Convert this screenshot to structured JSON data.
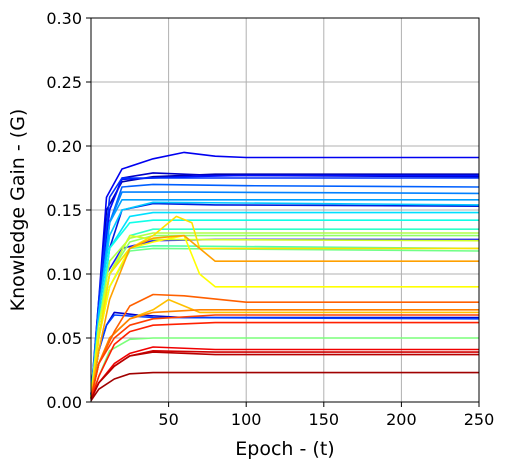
{
  "chart_data": {
    "type": "line",
    "xlabel": "Epoch - (t)",
    "ylabel": "Knowledge Gain - (G)",
    "xlim": [
      0,
      250
    ],
    "ylim": [
      0.0,
      0.3
    ],
    "xticks": [
      "50",
      "100",
      "150",
      "200",
      "250"
    ],
    "xtick_values": [
      50,
      100,
      150,
      200,
      250
    ],
    "yticks": [
      "0.00",
      "0.05",
      "0.10",
      "0.15",
      "0.20",
      "0.25",
      "0.30"
    ],
    "ytick_values": [
      0.0,
      0.05,
      0.1,
      0.15,
      0.2,
      0.25,
      0.3
    ],
    "grid": true,
    "legend": "none",
    "colormap": "jet",
    "series": [
      {
        "color": "#0000a8",
        "values": [
          [
            0,
            0.005
          ],
          [
            5,
            0.07
          ],
          [
            10,
            0.15
          ],
          [
            20,
            0.172
          ],
          [
            40,
            0.176
          ],
          [
            80,
            0.178
          ],
          [
            250,
            0.178
          ]
        ]
      },
      {
        "color": "#0000c8",
        "values": [
          [
            0,
            0.005
          ],
          [
            5,
            0.07
          ],
          [
            12,
            0.15
          ],
          [
            20,
            0.175
          ],
          [
            40,
            0.179
          ],
          [
            80,
            0.177
          ],
          [
            250,
            0.176
          ]
        ]
      },
      {
        "color": "#0000f0",
        "values": [
          [
            0,
            0.005
          ],
          [
            5,
            0.08
          ],
          [
            10,
            0.16
          ],
          [
            20,
            0.182
          ],
          [
            40,
            0.19
          ],
          [
            60,
            0.195
          ],
          [
            80,
            0.192
          ],
          [
            100,
            0.191
          ],
          [
            250,
            0.191
          ]
        ]
      },
      {
        "color": "#0010ff",
        "values": [
          [
            0,
            0.005
          ],
          [
            5,
            0.07
          ],
          [
            12,
            0.15
          ],
          [
            20,
            0.174
          ],
          [
            60,
            0.176
          ],
          [
            100,
            0.177
          ],
          [
            250,
            0.177
          ]
        ]
      },
      {
        "color": "#0030ff",
        "values": [
          [
            0,
            0.005
          ],
          [
            5,
            0.08
          ],
          [
            12,
            0.16
          ],
          [
            20,
            0.175
          ],
          [
            40,
            0.175
          ],
          [
            250,
            0.175
          ]
        ]
      },
      {
        "color": "#0020e0",
        "values": [
          [
            0,
            0.005
          ],
          [
            5,
            0.06
          ],
          [
            12,
            0.12
          ],
          [
            20,
            0.15
          ],
          [
            40,
            0.155
          ],
          [
            80,
            0.154
          ],
          [
            250,
            0.153
          ]
        ]
      },
      {
        "color": "#1a1aff",
        "values": [
          [
            0,
            0.005
          ],
          [
            5,
            0.06
          ],
          [
            10,
            0.1
          ],
          [
            20,
            0.12
          ],
          [
            40,
            0.126
          ],
          [
            80,
            0.127
          ],
          [
            250,
            0.127
          ]
        ]
      },
      {
        "color": "#0000d0",
        "values": [
          [
            0,
            0.003
          ],
          [
            5,
            0.04
          ],
          [
            10,
            0.06
          ],
          [
            15,
            0.07
          ],
          [
            30,
            0.068
          ],
          [
            60,
            0.066
          ],
          [
            250,
            0.066
          ]
        ]
      },
      {
        "color": "#0040ff",
        "values": [
          [
            0,
            0.003
          ],
          [
            5,
            0.04
          ],
          [
            10,
            0.06
          ],
          [
            15,
            0.068
          ],
          [
            40,
            0.066
          ],
          [
            250,
            0.065
          ]
        ]
      },
      {
        "color": "#0060ff",
        "values": [
          [
            0,
            0.005
          ],
          [
            5,
            0.07
          ],
          [
            12,
            0.14
          ],
          [
            20,
            0.168
          ],
          [
            40,
            0.17
          ],
          [
            100,
            0.169
          ],
          [
            250,
            0.168
          ]
        ]
      },
      {
        "color": "#0080ff",
        "values": [
          [
            0,
            0.005
          ],
          [
            5,
            0.07
          ],
          [
            12,
            0.14
          ],
          [
            20,
            0.164
          ],
          [
            60,
            0.164
          ],
          [
            250,
            0.163
          ]
        ]
      },
      {
        "color": "#00a0ff",
        "values": [
          [
            0,
            0.005
          ],
          [
            5,
            0.07
          ],
          [
            12,
            0.14
          ],
          [
            20,
            0.158
          ],
          [
            60,
            0.158
          ],
          [
            250,
            0.158
          ]
        ]
      },
      {
        "color": "#00c8ff",
        "values": [
          [
            0,
            0.005
          ],
          [
            5,
            0.07
          ],
          [
            12,
            0.13
          ],
          [
            20,
            0.15
          ],
          [
            40,
            0.156
          ],
          [
            250,
            0.154
          ]
        ]
      },
      {
        "color": "#00e0ff",
        "values": [
          [
            0,
            0.005
          ],
          [
            5,
            0.06
          ],
          [
            12,
            0.12
          ],
          [
            25,
            0.145
          ],
          [
            40,
            0.148
          ],
          [
            250,
            0.148
          ]
        ]
      },
      {
        "color": "#10ffe8",
        "values": [
          [
            0,
            0.005
          ],
          [
            5,
            0.06
          ],
          [
            12,
            0.12
          ],
          [
            25,
            0.14
          ],
          [
            40,
            0.142
          ],
          [
            250,
            0.142
          ]
        ]
      },
      {
        "color": "#30ffc8",
        "values": [
          [
            0,
            0.004
          ],
          [
            5,
            0.05
          ],
          [
            12,
            0.1
          ],
          [
            25,
            0.13
          ],
          [
            40,
            0.135
          ],
          [
            250,
            0.135
          ]
        ]
      },
      {
        "color": "#50ffa8",
        "values": [
          [
            0,
            0.004
          ],
          [
            5,
            0.05
          ],
          [
            12,
            0.1
          ],
          [
            25,
            0.12
          ],
          [
            40,
            0.122
          ],
          [
            250,
            0.12
          ]
        ]
      },
      {
        "color": "#70ff88",
        "values": [
          [
            0,
            0.004
          ],
          [
            5,
            0.05
          ],
          [
            12,
            0.09
          ],
          [
            25,
            0.118
          ],
          [
            40,
            0.12
          ],
          [
            250,
            0.118
          ]
        ]
      },
      {
        "color": "#7aff7a",
        "values": [
          [
            0,
            0.003
          ],
          [
            5,
            0.02
          ],
          [
            12,
            0.04
          ],
          [
            25,
            0.049
          ],
          [
            40,
            0.05
          ],
          [
            250,
            0.05
          ]
        ]
      },
      {
        "color": "#90ff68",
        "values": [
          [
            0,
            0.004
          ],
          [
            5,
            0.05
          ],
          [
            12,
            0.1
          ],
          [
            25,
            0.125
          ],
          [
            40,
            0.13
          ],
          [
            250,
            0.13
          ]
        ]
      },
      {
        "color": "#b0ff48",
        "values": [
          [
            0,
            0.004
          ],
          [
            5,
            0.06
          ],
          [
            12,
            0.11
          ],
          [
            25,
            0.128
          ],
          [
            40,
            0.132
          ],
          [
            250,
            0.132
          ]
        ]
      },
      {
        "color": "#d0ff28",
        "values": [
          [
            0,
            0.004
          ],
          [
            5,
            0.06
          ],
          [
            12,
            0.1
          ],
          [
            25,
            0.13
          ],
          [
            40,
            0.127
          ],
          [
            250,
            0.126
          ]
        ]
      },
      {
        "color": "#ffff00",
        "values": [
          [
            0,
            0.004
          ],
          [
            5,
            0.05
          ],
          [
            12,
            0.09
          ],
          [
            25,
            0.12
          ],
          [
            40,
            0.125
          ],
          [
            60,
            0.13
          ],
          [
            70,
            0.1
          ],
          [
            80,
            0.09
          ],
          [
            250,
            0.09
          ]
        ]
      },
      {
        "color": "#ffe000",
        "values": [
          [
            0,
            0.004
          ],
          [
            5,
            0.05
          ],
          [
            12,
            0.1
          ],
          [
            25,
            0.12
          ],
          [
            40,
            0.13
          ],
          [
            55,
            0.145
          ],
          [
            65,
            0.14
          ],
          [
            70,
            0.12
          ],
          [
            250,
            0.12
          ]
        ]
      },
      {
        "color": "#ffc000",
        "values": [
          [
            0,
            0.003
          ],
          [
            5,
            0.03
          ],
          [
            12,
            0.05
          ],
          [
            25,
            0.065
          ],
          [
            40,
            0.072
          ],
          [
            50,
            0.08
          ],
          [
            60,
            0.075
          ],
          [
            70,
            0.07
          ],
          [
            250,
            0.07
          ]
        ]
      },
      {
        "color": "#ffa000",
        "values": [
          [
            0,
            0.003
          ],
          [
            5,
            0.04
          ],
          [
            12,
            0.08
          ],
          [
            25,
            0.12
          ],
          [
            40,
            0.128
          ],
          [
            60,
            0.13
          ],
          [
            70,
            0.12
          ],
          [
            80,
            0.11
          ],
          [
            250,
            0.11
          ]
        ]
      },
      {
        "color": "#ff8000",
        "values": [
          [
            0,
            0.003
          ],
          [
            5,
            0.03
          ],
          [
            12,
            0.05
          ],
          [
            25,
            0.065
          ],
          [
            40,
            0.07
          ],
          [
            70,
            0.072
          ],
          [
            250,
            0.072
          ]
        ]
      },
      {
        "color": "#ff6000",
        "values": [
          [
            0,
            0.003
          ],
          [
            5,
            0.03
          ],
          [
            15,
            0.055
          ],
          [
            25,
            0.075
          ],
          [
            40,
            0.084
          ],
          [
            60,
            0.083
          ],
          [
            100,
            0.078
          ],
          [
            250,
            0.078
          ]
        ]
      },
      {
        "color": "#ff4000",
        "values": [
          [
            0,
            0.003
          ],
          [
            5,
            0.03
          ],
          [
            15,
            0.05
          ],
          [
            25,
            0.06
          ],
          [
            40,
            0.065
          ],
          [
            80,
            0.068
          ],
          [
            250,
            0.068
          ]
        ]
      },
      {
        "color": "#ff2000",
        "values": [
          [
            0,
            0.002
          ],
          [
            5,
            0.02
          ],
          [
            15,
            0.045
          ],
          [
            25,
            0.055
          ],
          [
            40,
            0.06
          ],
          [
            80,
            0.062
          ],
          [
            250,
            0.062
          ]
        ]
      },
      {
        "color": "#f00000",
        "values": [
          [
            0,
            0.002
          ],
          [
            5,
            0.015
          ],
          [
            15,
            0.03
          ],
          [
            25,
            0.038
          ],
          [
            40,
            0.043
          ],
          [
            80,
            0.041
          ],
          [
            250,
            0.041
          ]
        ]
      },
      {
        "color": "#d00000",
        "values": [
          [
            0,
            0.002
          ],
          [
            5,
            0.015
          ],
          [
            15,
            0.028
          ],
          [
            25,
            0.036
          ],
          [
            40,
            0.04
          ],
          [
            80,
            0.039
          ],
          [
            250,
            0.039
          ]
        ]
      },
      {
        "color": "#b80000",
        "values": [
          [
            0,
            0.002
          ],
          [
            5,
            0.015
          ],
          [
            15,
            0.028
          ],
          [
            25,
            0.036
          ],
          [
            40,
            0.039
          ],
          [
            80,
            0.037
          ],
          [
            250,
            0.037
          ]
        ]
      },
      {
        "color": "#a00000",
        "values": [
          [
            0,
            0.001
          ],
          [
            5,
            0.01
          ],
          [
            15,
            0.018
          ],
          [
            25,
            0.022
          ],
          [
            40,
            0.023
          ],
          [
            250,
            0.023
          ]
        ]
      }
    ]
  }
}
